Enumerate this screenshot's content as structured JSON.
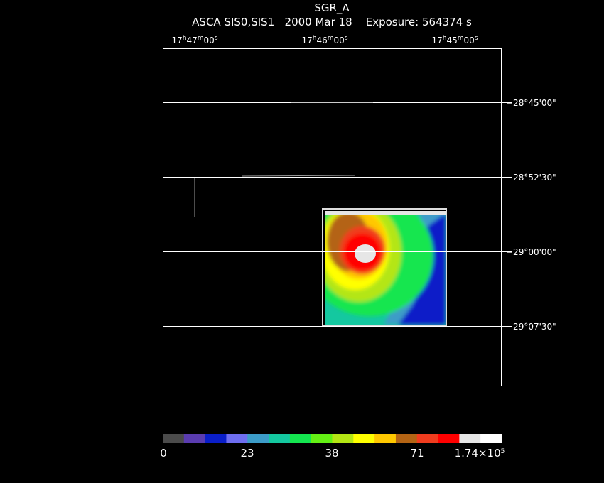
{
  "title": "SGR_A",
  "subtitle": "ASCA SIS0,SIS1   2000 Mar 18    Exposure: 564374 s",
  "ra_labels": [
    [
      "17",
      "h",
      "47",
      "m",
      "00",
      "s"
    ],
    [
      "17",
      "h",
      "46",
      "m",
      "00",
      "s"
    ],
    [
      "17",
      "h",
      "45",
      "m",
      "00",
      "s"
    ]
  ],
  "dec_labels": [
    "−28°45'00\"",
    "−28°52'30\"",
    "−29°00'00\"",
    "−29°07'30\""
  ],
  "colorbar": {
    "colors": [
      "#4b4b4b",
      "#5a3cb0",
      "#0a1ec8",
      "#6e6ef0",
      "#3c9cc8",
      "#14c8a0",
      "#14e650",
      "#64f014",
      "#b4e614",
      "#ffff00",
      "#ffc800",
      "#b46414",
      "#f03c1e",
      "#ff0000",
      "#e6e6e6",
      "#ffffff"
    ],
    "labels": [
      [
        "0"
      ],
      [
        "23"
      ],
      [
        "38"
      ],
      [
        "71"
      ],
      [
        "1.74×10",
        "5"
      ]
    ]
  }
}
